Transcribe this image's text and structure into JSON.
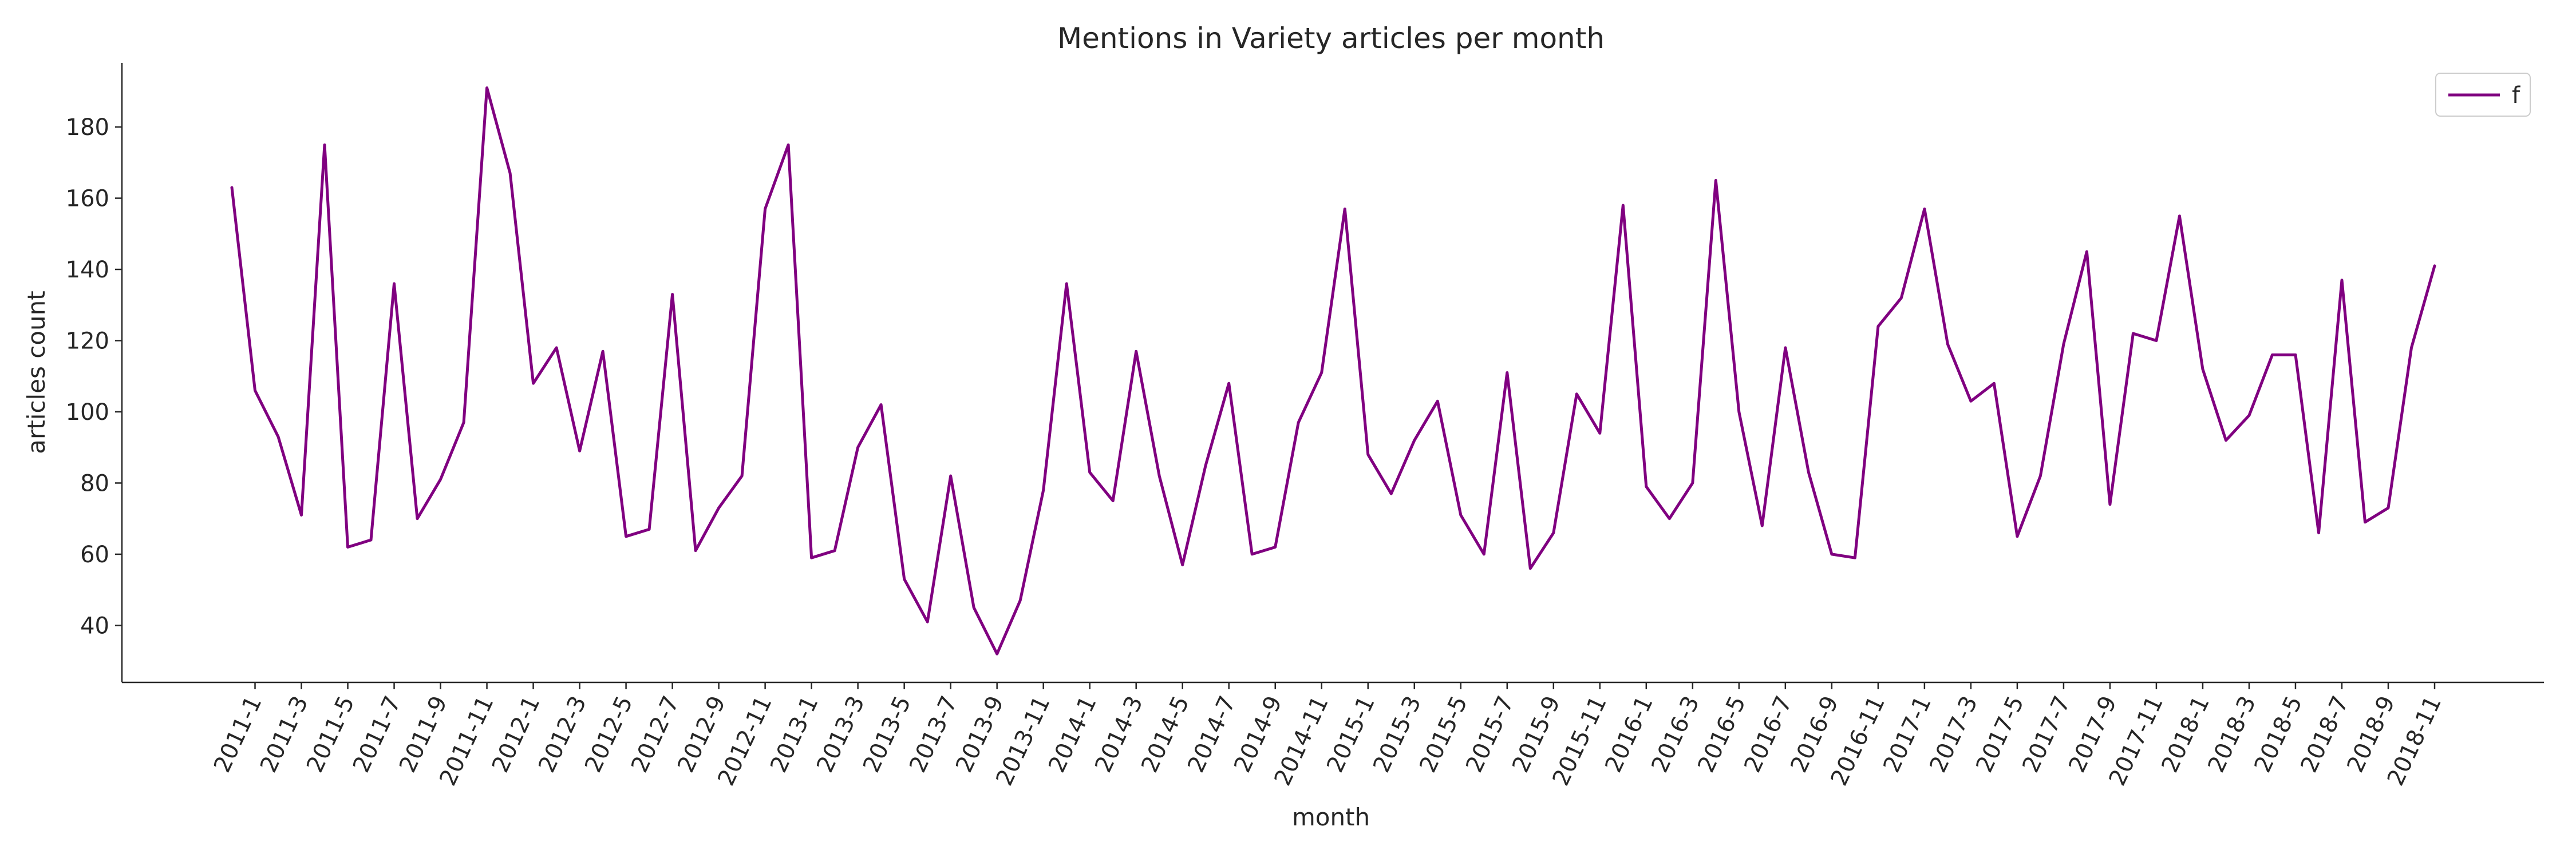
{
  "chart_data": {
    "type": "line",
    "title": "Mentions in Variety articles per month",
    "xlabel": "month",
    "ylabel": "articles count",
    "ylim": [
      24,
      198
    ],
    "yticks": [
      40,
      60,
      80,
      100,
      120,
      140,
      160,
      180
    ],
    "grid": false,
    "legend_position": "top-right",
    "x": [
      "2010-12",
      "2011-1",
      "2011-2",
      "2011-3",
      "2011-4",
      "2011-5",
      "2011-6",
      "2011-7",
      "2011-8",
      "2011-9",
      "2011-10",
      "2011-11",
      "2011-12",
      "2012-1",
      "2012-2",
      "2012-3",
      "2012-4",
      "2012-5",
      "2012-6",
      "2012-7",
      "2012-8",
      "2012-9",
      "2012-10",
      "2012-11",
      "2012-12",
      "2013-1",
      "2013-2",
      "2013-3",
      "2013-4",
      "2013-5",
      "2013-6",
      "2013-7",
      "2013-8",
      "2013-9",
      "2013-10",
      "2013-11",
      "2013-12",
      "2014-1",
      "2014-2",
      "2014-3",
      "2014-4",
      "2014-5",
      "2014-6",
      "2014-7",
      "2014-8",
      "2014-9",
      "2014-10",
      "2014-11",
      "2014-12",
      "2015-1",
      "2015-2",
      "2015-3",
      "2015-4",
      "2015-5",
      "2015-6",
      "2015-7",
      "2015-8",
      "2015-9",
      "2015-10",
      "2015-11",
      "2015-12",
      "2016-1",
      "2016-2",
      "2016-3",
      "2016-4",
      "2016-5",
      "2016-6",
      "2016-7",
      "2016-8",
      "2016-9",
      "2016-10",
      "2016-11",
      "2016-12",
      "2017-1",
      "2017-2",
      "2017-3",
      "2017-4",
      "2017-5",
      "2017-6",
      "2017-7",
      "2017-8",
      "2017-9",
      "2017-10",
      "2017-11",
      "2017-12",
      "2018-1",
      "2018-2",
      "2018-3",
      "2018-4",
      "2018-5",
      "2018-6",
      "2018-7",
      "2018-8",
      "2018-9",
      "2018-10",
      "2018-11"
    ],
    "xticklabels": [
      "2011-1",
      "2011-3",
      "2011-5",
      "2011-7",
      "2011-9",
      "2011-11",
      "2012-1",
      "2012-3",
      "2012-5",
      "2012-7",
      "2012-9",
      "2012-11",
      "2013-1",
      "2013-3",
      "2013-5",
      "2013-7",
      "2013-9",
      "2013-11",
      "2014-1",
      "2014-3",
      "2014-5",
      "2014-7",
      "2014-9",
      "2014-11",
      "2015-1",
      "2015-3",
      "2015-5",
      "2015-7",
      "2015-9",
      "2015-11",
      "2016-1",
      "2016-3",
      "2016-5",
      "2016-7",
      "2016-9",
      "2016-11",
      "2017-1",
      "2017-3",
      "2017-5",
      "2017-7",
      "2017-9",
      "2017-11",
      "2018-1",
      "2018-3",
      "2018-5",
      "2018-7",
      "2018-9",
      "2018-11"
    ],
    "series": [
      {
        "name": "f",
        "color": "#800080",
        "values": [
          163,
          106,
          93,
          71,
          175,
          62,
          64,
          136,
          70,
          81,
          97,
          191,
          167,
          108,
          118,
          89,
          117,
          65,
          67,
          133,
          61,
          73,
          82,
          157,
          175,
          59,
          61,
          90,
          102,
          53,
          41,
          82,
          45,
          32,
          47,
          78,
          136,
          83,
          75,
          117,
          82,
          57,
          85,
          108,
          60,
          62,
          97,
          111,
          157,
          88,
          77,
          92,
          103,
          71,
          60,
          111,
          56,
          66,
          105,
          94,
          158,
          79,
          70,
          80,
          165,
          100,
          68,
          118,
          83,
          60,
          59,
          124,
          132,
          157,
          119,
          103,
          108,
          65,
          82,
          119,
          145,
          74,
          122,
          120,
          155,
          112,
          92,
          99,
          116,
          116,
          66,
          137,
          69,
          73,
          118,
          141
        ]
      }
    ]
  }
}
